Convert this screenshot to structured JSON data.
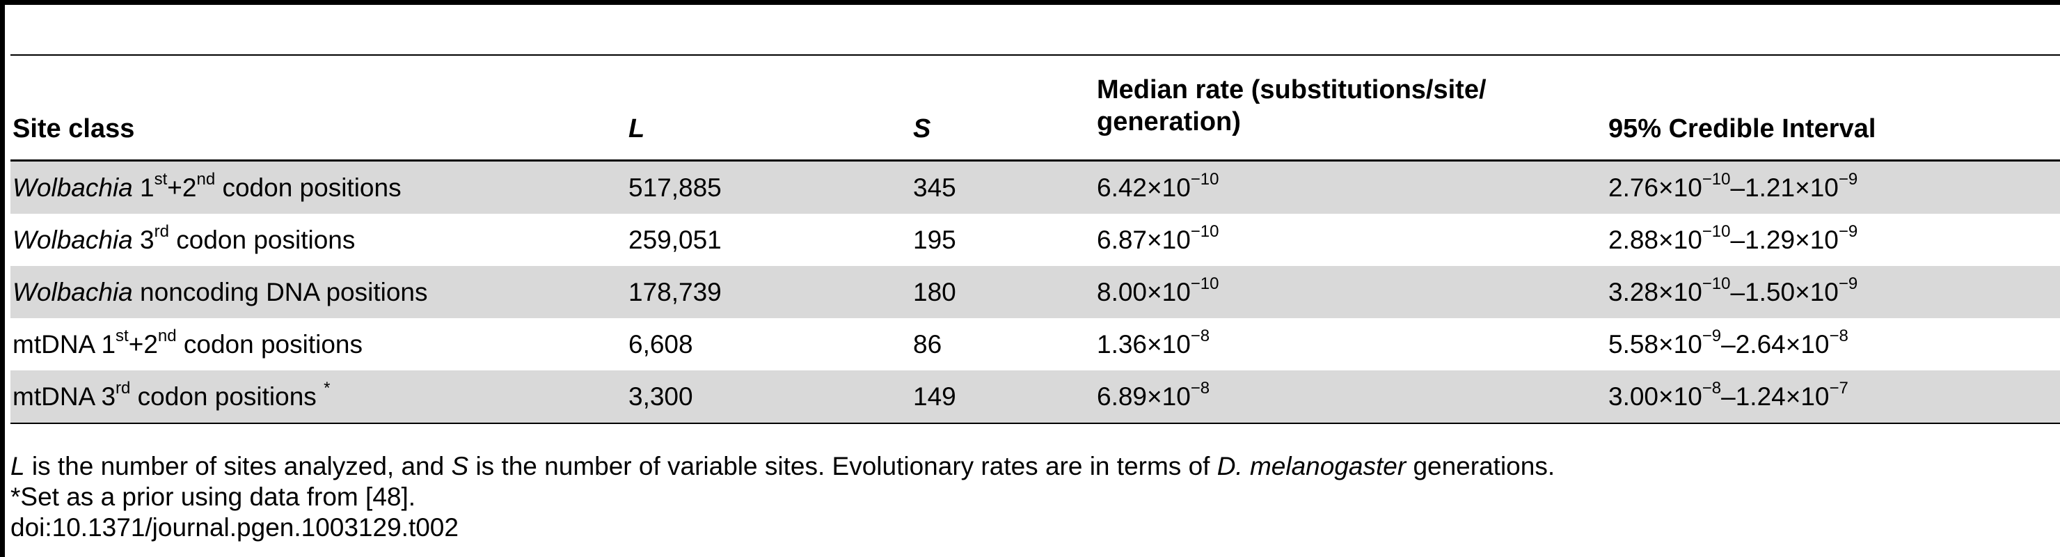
{
  "table": {
    "headers": {
      "site_class": "Site class",
      "L": "L",
      "S": "S",
      "median_line1": "Median rate (substitutions/site/",
      "median_line2": "generation)",
      "ci": "95% Credible Interval"
    },
    "rows": [
      {
        "site_prefix": "Wolbachia",
        "site_parts": [
          " 1",
          "st",
          "+2",
          "nd",
          " codon positions"
        ],
        "L": "517,885",
        "S": "345",
        "median": [
          "6.42×10",
          "−10"
        ],
        "ci": [
          "2.76×10",
          "−10",
          "–1.21×10",
          "−9"
        ]
      },
      {
        "site_prefix": "Wolbachia",
        "site_parts": [
          " 3",
          "rd",
          " codon positions"
        ],
        "L": "259,051",
        "S": "195",
        "median": [
          "6.87×10",
          "−10"
        ],
        "ci": [
          "2.88×10",
          "−10",
          "–1.29×10",
          "−9"
        ]
      },
      {
        "site_prefix": "Wolbachia",
        "site_parts": [
          " noncoding DNA positions"
        ],
        "L": "178,739",
        "S": "180",
        "median": [
          "8.00×10",
          "−10"
        ],
        "ci": [
          "3.28×10",
          "−10",
          "–1.50×10",
          "−9"
        ]
      },
      {
        "site_prefix": "",
        "site_parts": [
          "mtDNA 1",
          "st",
          "+2",
          "nd",
          " codon positions"
        ],
        "L": "6,608",
        "S": "86",
        "median": [
          "1.36×10",
          "−8"
        ],
        "ci": [
          "5.58×10",
          "−9",
          "–2.64×10",
          "−8"
        ]
      },
      {
        "site_prefix": "",
        "site_parts": [
          "mtDNA 3",
          "rd",
          " codon positions ",
          "*"
        ],
        "L": "3,300",
        "S": "149",
        "median": [
          "6.89×10",
          "−8"
        ],
        "ci": [
          "3.00×10",
          "−8",
          "–1.24×10",
          "−7"
        ]
      }
    ]
  },
  "footnotes": {
    "line1": [
      "L",
      " is the number of sites analyzed, and ",
      "S",
      " is the number of variable sites. Evolutionary rates are in terms of ",
      "D. melanogaster",
      " generations."
    ],
    "line2": "*Set as a prior using data from [48].",
    "line3": "doi:10.1371/journal.pgen.1003129.t002"
  },
  "colors": {
    "row_shade": "#d9d9d9",
    "rule": "#000000"
  }
}
